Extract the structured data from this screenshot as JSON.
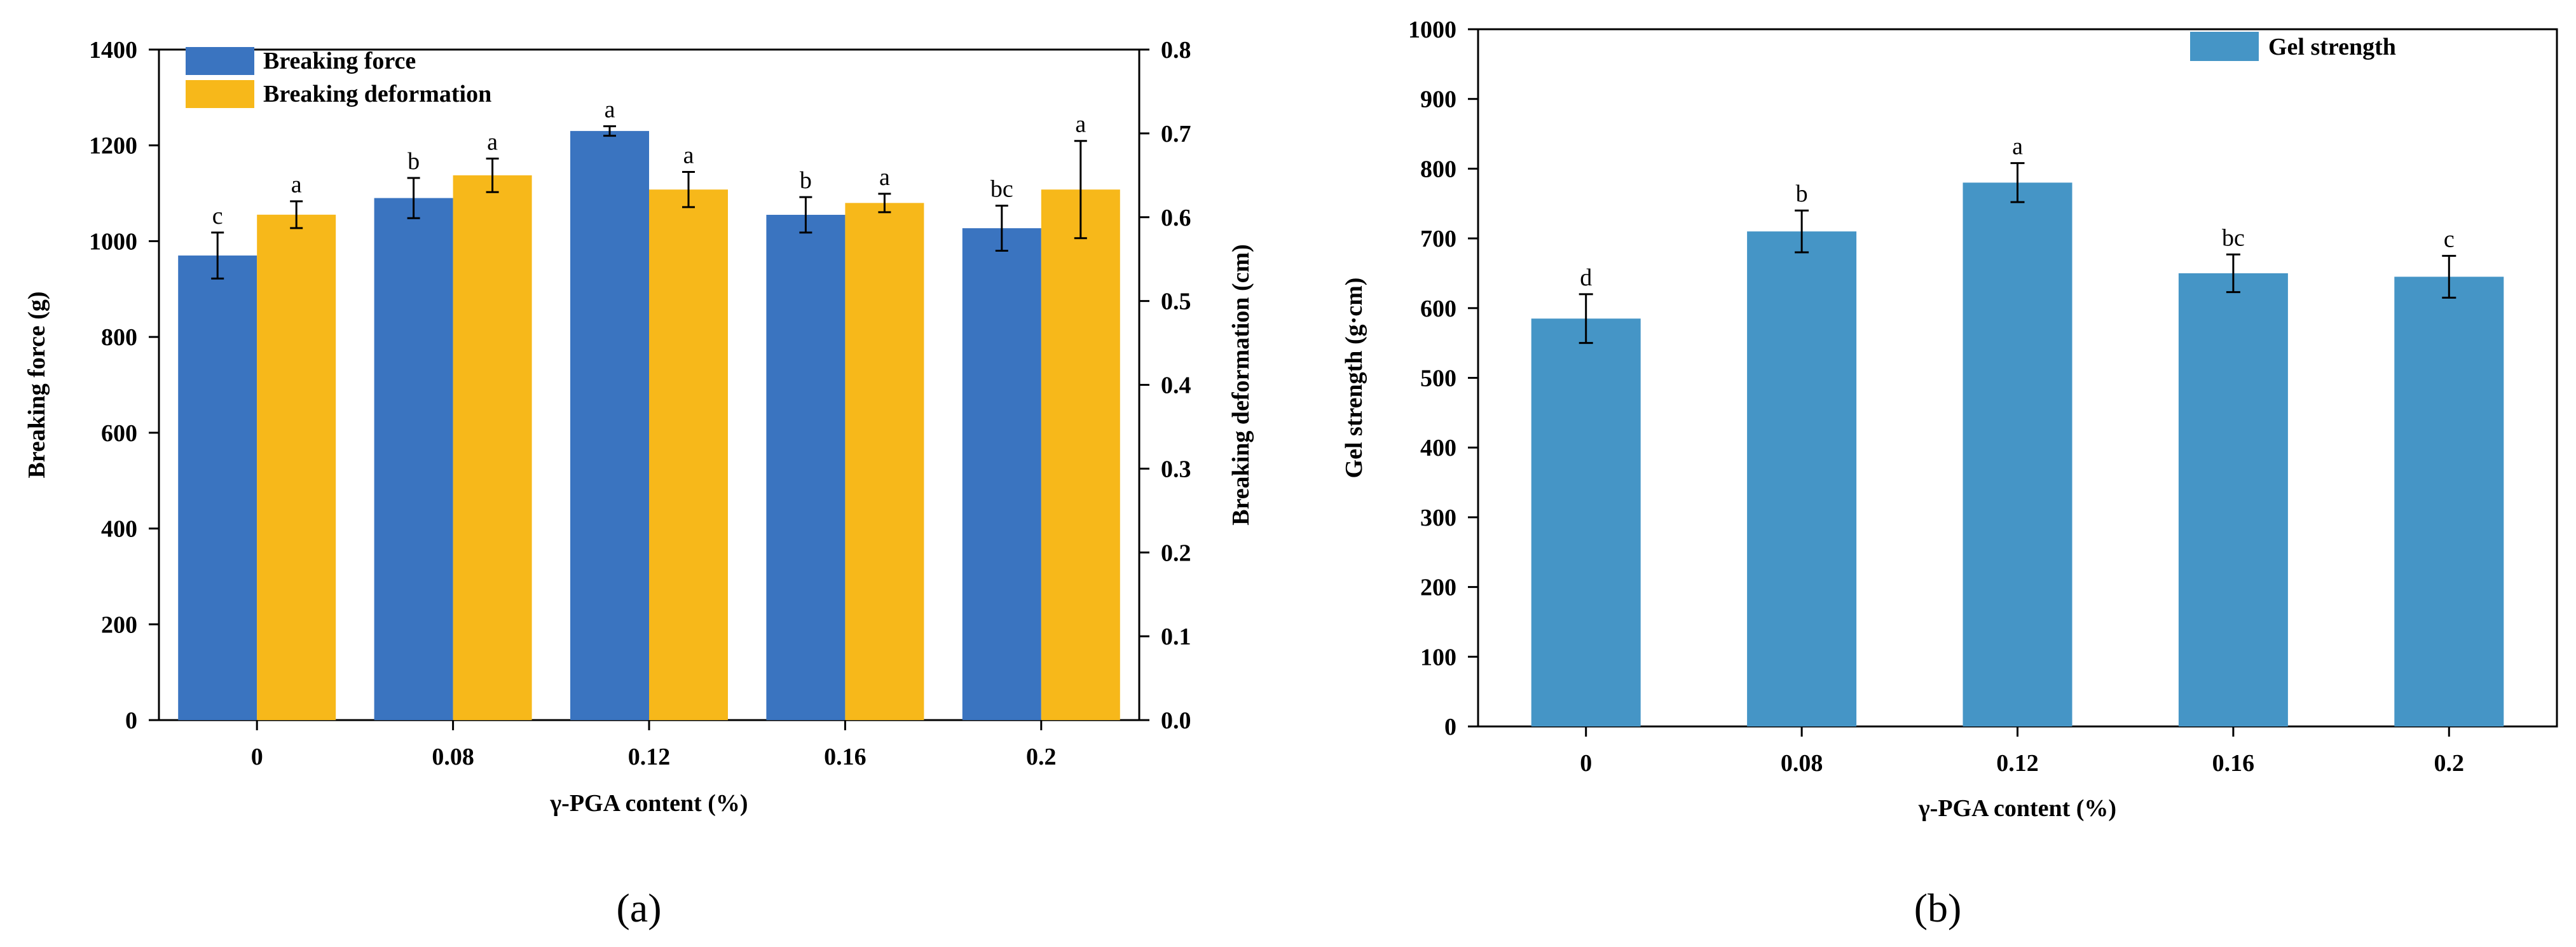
{
  "chart_data": [
    {
      "type": "bar",
      "panel_label": "(a)",
      "title": "",
      "categories": [
        "0",
        "0.08",
        "0.12",
        "0.16",
        "0.2"
      ],
      "xlabel": "γ-PGA content (%)",
      "ylabel": "Breaking force (g)",
      "ylabel_right": "Breaking deformation (cm)",
      "ylim": [
        0,
        1400
      ],
      "yticks": [
        "0",
        "200",
        "400",
        "600",
        "800",
        "1000",
        "1200",
        "1400"
      ],
      "ylim_right": [
        0,
        0.8
      ],
      "yticks_right": [
        "0.0",
        "0.1",
        "0.2",
        "0.3",
        "0.4",
        "0.5",
        "0.6",
        "0.7",
        "0.8"
      ],
      "legend_position": "top-left",
      "series": [
        {
          "name": "Breaking force",
          "axis": "left",
          "color": "#3A74C0",
          "values": [
            970,
            1090,
            1230,
            1055,
            1027
          ],
          "errors": [
            48,
            42,
            10,
            37,
            47
          ],
          "letters": [
            "c",
            "b",
            "a",
            "b",
            "bc"
          ]
        },
        {
          "name": "Breaking deformation",
          "axis": "right",
          "color": "#F7B81A",
          "values": [
            0.603,
            0.65,
            0.633,
            0.617,
            0.633
          ],
          "errors": [
            0.016,
            0.02,
            0.021,
            0.011,
            0.058
          ],
          "letters": [
            "a",
            "a",
            "a",
            "a",
            "a"
          ]
        }
      ]
    },
    {
      "type": "bar",
      "panel_label": "(b)",
      "title": "",
      "categories": [
        "0",
        "0.08",
        "0.12",
        "0.16",
        "0.2"
      ],
      "xlabel": "γ-PGA content (%)",
      "ylabel": "Gel strength (g·cm)",
      "ylim": [
        0,
        1000
      ],
      "yticks": [
        "0",
        "100",
        "200",
        "300",
        "400",
        "500",
        "600",
        "700",
        "800",
        "900",
        "1000"
      ],
      "legend_position": "top-right",
      "series": [
        {
          "name": "Gel strength",
          "color": "#4595C6",
          "values": [
            585,
            710,
            780,
            650,
            645
          ],
          "errors": [
            35,
            30,
            28,
            27,
            30
          ],
          "letters": [
            "d",
            "b",
            "a",
            "bc",
            "c"
          ]
        }
      ]
    }
  ]
}
